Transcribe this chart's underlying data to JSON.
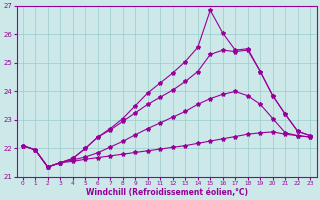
{
  "xlabel": "Windchill (Refroidissement éolien,°C)",
  "bg_color": "#cce8e8",
  "line_color": "#990099",
  "grid_color": "#99cccc",
  "xlim": [
    -0.5,
    23.5
  ],
  "ylim": [
    21.0,
    27.0
  ],
  "yticks": [
    21,
    22,
    23,
    24,
    25,
    26,
    27
  ],
  "xticks": [
    0,
    1,
    2,
    3,
    4,
    5,
    6,
    7,
    8,
    9,
    10,
    11,
    12,
    13,
    14,
    15,
    16,
    17,
    18,
    19,
    20,
    21,
    22,
    23
  ],
  "line1_x": [
    0,
    1,
    2,
    3,
    4,
    5,
    6,
    7,
    8,
    9,
    10,
    11,
    12,
    13,
    14,
    15,
    16,
    17,
    18,
    19,
    20,
    21,
    22,
    23
  ],
  "line1_y": [
    22.1,
    21.95,
    21.35,
    21.5,
    21.55,
    21.62,
    21.68,
    21.74,
    21.8,
    21.86,
    21.92,
    21.98,
    22.04,
    22.1,
    22.18,
    22.26,
    22.34,
    22.42,
    22.5,
    22.55,
    22.58,
    22.5,
    22.45,
    22.4
  ],
  "line2_x": [
    0,
    1,
    2,
    3,
    4,
    5,
    6,
    7,
    8,
    9,
    10,
    11,
    12,
    13,
    14,
    15,
    16,
    17,
    18,
    19,
    20,
    21,
    22,
    23
  ],
  "line2_y": [
    22.1,
    21.95,
    21.35,
    21.5,
    21.6,
    21.7,
    21.85,
    22.05,
    22.25,
    22.48,
    22.7,
    22.9,
    23.1,
    23.3,
    23.55,
    23.75,
    23.9,
    24.0,
    23.85,
    23.55,
    23.05,
    22.55,
    22.45,
    22.4
  ],
  "line3_x": [
    0,
    1,
    2,
    3,
    4,
    5,
    6,
    7,
    8,
    9,
    10,
    11,
    12,
    13,
    14,
    15,
    16,
    17,
    18,
    19,
    20,
    21,
    22,
    23
  ],
  "line3_y": [
    22.1,
    21.95,
    21.35,
    21.5,
    21.65,
    22.0,
    22.4,
    22.65,
    22.95,
    23.25,
    23.55,
    23.8,
    24.05,
    24.35,
    24.7,
    25.3,
    25.45,
    25.4,
    25.45,
    24.7,
    23.85,
    23.2,
    22.6,
    22.45
  ],
  "line4_x": [
    0,
    1,
    2,
    3,
    4,
    5,
    6,
    7,
    8,
    9,
    10,
    11,
    12,
    13,
    14,
    15,
    16,
    17,
    18,
    19,
    20,
    21,
    22,
    23
  ],
  "line4_y": [
    22.1,
    21.95,
    21.35,
    21.5,
    21.65,
    22.0,
    22.4,
    22.7,
    23.05,
    23.5,
    23.95,
    24.3,
    24.65,
    25.05,
    25.55,
    26.85,
    26.05,
    25.45,
    25.5,
    24.7,
    23.85,
    23.2,
    22.6,
    22.45
  ],
  "marker": "*",
  "markersize": 3,
  "linewidth": 0.8
}
